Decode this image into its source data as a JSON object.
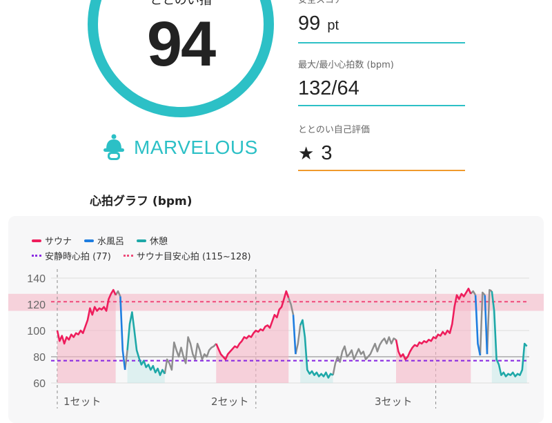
{
  "score": {
    "label": "ととのい指",
    "value": "94",
    "rank": "MARVELOUS",
    "ring_color": "#2cc0c6"
  },
  "stats": [
    {
      "label": "安全スコア",
      "value": "99",
      "unit": "pt",
      "line_color": "#2cc0c6"
    },
    {
      "label": "最大/最小心拍数 (bpm)",
      "value": "132/64",
      "unit": "",
      "line_color": "#2cc0c6"
    },
    {
      "label": "ととのい自己評価",
      "value": "3",
      "unit": "",
      "icon": "star-icon",
      "line_color": "#f09a2c"
    }
  ],
  "graph": {
    "title": "心拍グラフ (bpm)",
    "legend": {
      "sauna": "サウナ",
      "bath": "水風呂",
      "rest": "休憩",
      "resting_hr": "安静時心拍 (77)",
      "sauna_target": "サウナ目安心拍 (115~128)"
    },
    "colors": {
      "sauna": "#ee1d5c",
      "bath": "#1e7de0",
      "rest": "#1ea8a8",
      "transition": "#8e8e8e",
      "resting_hr": "#8a2be2",
      "sauna_target": "#ee4b7a"
    }
  },
  "chart_data": {
    "type": "line",
    "ylim": [
      60,
      140
    ],
    "yticks": [
      "60",
      "80",
      "100",
      "120",
      "140"
    ],
    "grid": true,
    "legend_position": "top-left",
    "reference_lines": [
      {
        "name": "安静時心拍 (77)",
        "value": 77
      },
      {
        "name": "サウナ目安心拍 (115~128)",
        "value": 122,
        "band": [
          115,
          128
        ]
      }
    ],
    "sets": [
      "1セット",
      "2セット",
      "3セット"
    ],
    "series": [
      {
        "name": "サウナ",
        "segments": [
          [
            [
              0,
              100
            ],
            [
              1,
              92
            ],
            [
              2,
              96
            ],
            [
              3,
              90
            ],
            [
              4,
              95
            ],
            [
              5,
              93
            ],
            [
              6,
              97
            ],
            [
              7,
              95
            ],
            [
              8,
              98
            ],
            [
              9,
              97
            ],
            [
              10,
              100
            ],
            [
              11,
              98
            ],
            [
              12,
              103
            ],
            [
              13,
              108
            ],
            [
              14,
              117
            ],
            [
              15,
              112
            ],
            [
              16,
              118
            ],
            [
              17,
              115
            ],
            [
              18,
              117
            ],
            [
              19,
              116
            ],
            [
              20,
              118
            ],
            [
              21,
              115
            ],
            [
              22,
              124
            ],
            [
              23,
              128
            ],
            [
              24,
              131
            ],
            [
              25,
              127
            ]
          ],
          [
            [
              68,
              90
            ],
            [
              69,
              86
            ],
            [
              70,
              82
            ],
            [
              71,
              80
            ],
            [
              72,
              78
            ],
            [
              73,
              82
            ],
            [
              74,
              84
            ],
            [
              75,
              86
            ],
            [
              76,
              88
            ],
            [
              77,
              87
            ],
            [
              78,
              90
            ],
            [
              79,
              92
            ],
            [
              80,
              95
            ],
            [
              81,
              94
            ],
            [
              82,
              96
            ],
            [
              83,
              95
            ],
            [
              84,
              98
            ],
            [
              85,
              100
            ],
            [
              86,
              99
            ],
            [
              87,
              101
            ],
            [
              88,
              100
            ],
            [
              89,
              103
            ],
            [
              90,
              104
            ],
            [
              91,
              102
            ],
            [
              92,
              107
            ],
            [
              93,
              112
            ],
            [
              94,
              110
            ],
            [
              95,
              116
            ],
            [
              96,
              118
            ],
            [
              97,
              124
            ],
            [
              98,
              130
            ],
            [
              99,
              125
            ]
          ],
          [
            [
              145,
              93
            ],
            [
              146,
              84
            ],
            [
              147,
              80
            ],
            [
              148,
              82
            ],
            [
              149,
              78
            ],
            [
              150,
              80
            ],
            [
              151,
              84
            ],
            [
              152,
              87
            ],
            [
              153,
              89
            ],
            [
              154,
              88
            ],
            [
              155,
              91
            ],
            [
              156,
              90
            ],
            [
              157,
              92
            ],
            [
              158,
              91
            ],
            [
              159,
              93
            ],
            [
              160,
              92
            ],
            [
              161,
              95
            ],
            [
              162,
              94
            ],
            [
              163,
              97
            ],
            [
              164,
              96
            ],
            [
              165,
              99
            ],
            [
              166,
              97
            ],
            [
              167,
              100
            ],
            [
              168,
              98
            ],
            [
              169,
              105
            ],
            [
              170,
              118
            ],
            [
              171,
              127
            ],
            [
              172,
              124
            ],
            [
              173,
              128
            ],
            [
              174,
              126
            ],
            [
              175,
              129
            ],
            [
              176,
              132
            ],
            [
              177,
              128
            ]
          ]
        ]
      },
      {
        "name": "水風呂",
        "segments": [
          [
            [
              27,
              126
            ],
            [
              28,
              85
            ],
            [
              29,
              70
            ]
          ],
          [
            [
              101,
              112
            ],
            [
              102,
              82
            ]
          ],
          [
            [
              179,
              127
            ],
            [
              180,
              90
            ],
            [
              181,
              81
            ]
          ],
          [
            [
              183,
              127
            ],
            [
              184,
              82
            ]
          ]
        ]
      },
      {
        "name": "休憩",
        "segments": [
          [
            [
              30,
              85
            ],
            [
              31,
              105
            ],
            [
              32,
              114
            ],
            [
              33,
              100
            ],
            [
              34,
              85
            ],
            [
              35,
              79
            ],
            [
              36,
              74
            ],
            [
              37,
              77
            ],
            [
              38,
              72
            ],
            [
              39,
              74
            ],
            [
              40,
              70
            ],
            [
              41,
              73
            ],
            [
              42,
              68
            ],
            [
              43,
              71
            ],
            [
              44,
              66
            ],
            [
              45,
              70
            ],
            [
              46,
              67
            ]
          ],
          [
            [
              104,
              104
            ],
            [
              105,
              108
            ],
            [
              106,
              95
            ],
            [
              107,
              70
            ],
            [
              108,
              67
            ],
            [
              109,
              69
            ],
            [
              110,
              66
            ],
            [
              111,
              68
            ],
            [
              112,
              65
            ],
            [
              113,
              67
            ],
            [
              114,
              65
            ],
            [
              115,
              68
            ],
            [
              116,
              64
            ],
            [
              117,
              67
            ],
            [
              118,
              66
            ]
          ],
          [
            [
              186,
              130
            ],
            [
              187,
              115
            ],
            [
              188,
              78
            ],
            [
              189,
              74
            ],
            [
              190,
              66
            ],
            [
              191,
              68
            ],
            [
              192,
              65
            ],
            [
              193,
              67
            ],
            [
              194,
              66
            ],
            [
              195,
              68
            ],
            [
              196,
              65
            ],
            [
              197,
              67
            ],
            [
              198,
              66
            ],
            [
              199,
              70
            ],
            [
              200,
              90
            ],
            [
              201,
              88
            ]
          ]
        ]
      }
    ],
    "transitions": [
      [
        [
          25,
          127
        ],
        [
          26,
          130
        ],
        [
          27,
          126
        ]
      ],
      [
        [
          29,
          70
        ],
        [
          30,
          85
        ]
      ],
      [
        [
          46,
          67
        ],
        [
          47,
          78
        ],
        [
          48,
          75
        ],
        [
          49,
          70
        ],
        [
          50,
          91
        ],
        [
          51,
          85
        ],
        [
          52,
          80
        ],
        [
          53,
          87
        ],
        [
          54,
          80
        ],
        [
          55,
          75
        ],
        [
          56,
          95
        ],
        [
          57,
          90
        ],
        [
          58,
          82
        ],
        [
          59,
          78
        ],
        [
          60,
          90
        ],
        [
          61,
          85
        ],
        [
          62,
          78
        ],
        [
          63,
          82
        ],
        [
          64,
          80
        ],
        [
          65,
          85
        ],
        [
          66,
          87
        ],
        [
          67,
          88
        ],
        [
          68,
          90
        ]
      ],
      [
        [
          99,
          125
        ],
        [
          100,
          120
        ],
        [
          101,
          112
        ]
      ],
      [
        [
          102,
          82
        ],
        [
          103,
          90
        ],
        [
          104,
          104
        ]
      ],
      [
        [
          118,
          66
        ],
        [
          119,
          75
        ],
        [
          120,
          80
        ],
        [
          121,
          76
        ],
        [
          122,
          84
        ],
        [
          123,
          88
        ],
        [
          124,
          80
        ],
        [
          125,
          82
        ],
        [
          126,
          85
        ],
        [
          127,
          78
        ],
        [
          128,
          82
        ],
        [
          129,
          86
        ],
        [
          130,
          82
        ],
        [
          131,
          84
        ],
        [
          132,
          78
        ],
        [
          133,
          80
        ],
        [
          134,
          82
        ],
        [
          135,
          86
        ],
        [
          136,
          90
        ],
        [
          137,
          84
        ],
        [
          138,
          89
        ],
        [
          139,
          92
        ],
        [
          140,
          94
        ],
        [
          141,
          90
        ],
        [
          142,
          95
        ],
        [
          143,
          90
        ],
        [
          144,
          94
        ],
        [
          145,
          93
        ]
      ],
      [
        [
          177,
          128
        ],
        [
          178,
          130
        ],
        [
          179,
          127
        ]
      ],
      [
        [
          181,
          81
        ],
        [
          182,
          129
        ],
        [
          183,
          127
        ]
      ],
      [
        [
          184,
          82
        ],
        [
          185,
          131
        ],
        [
          186,
          130
        ]
      ]
    ]
  }
}
